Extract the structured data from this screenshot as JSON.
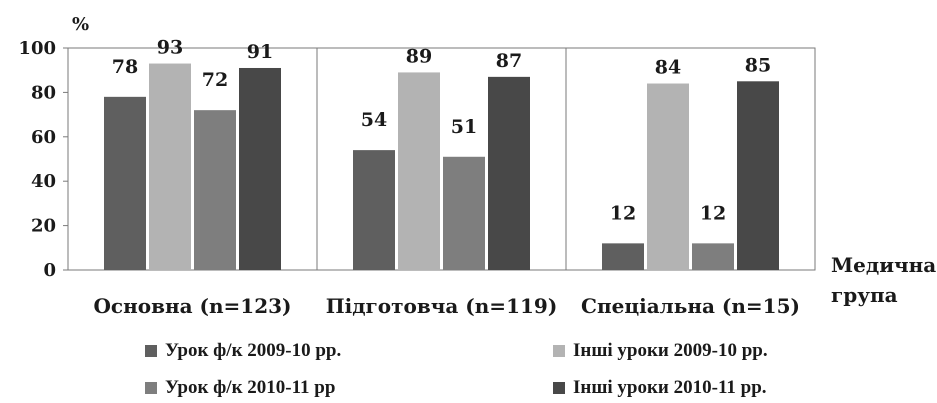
{
  "chart_data": {
    "type": "bar",
    "ylabel": "%",
    "xlabel": "Медична група",
    "ylim": [
      0,
      100
    ],
    "yticks": [
      0,
      20,
      40,
      60,
      80,
      100
    ],
    "categories": [
      "Основна (n=123)",
      "Підготовча (n=119)",
      "Спеціальна (n=15)"
    ],
    "grid": false,
    "legend_position": "bottom",
    "series": [
      {
        "name": "Урок ф/к 2009-10 рр.",
        "values": [
          78,
          54,
          12
        ],
        "color": "#5f5f5f"
      },
      {
        "name": "Інші уроки 2009-10 рр.",
        "values": [
          93,
          89,
          84
        ],
        "color": "#b3b3b3"
      },
      {
        "name": "Урок ф/к 2010-11 рр",
        "values": [
          72,
          51,
          12
        ],
        "color": "#7e7e7e"
      },
      {
        "name": "Інші уроки 2010-11 рр.",
        "values": [
          91,
          87,
          85
        ],
        "color": "#484848"
      }
    ]
  }
}
